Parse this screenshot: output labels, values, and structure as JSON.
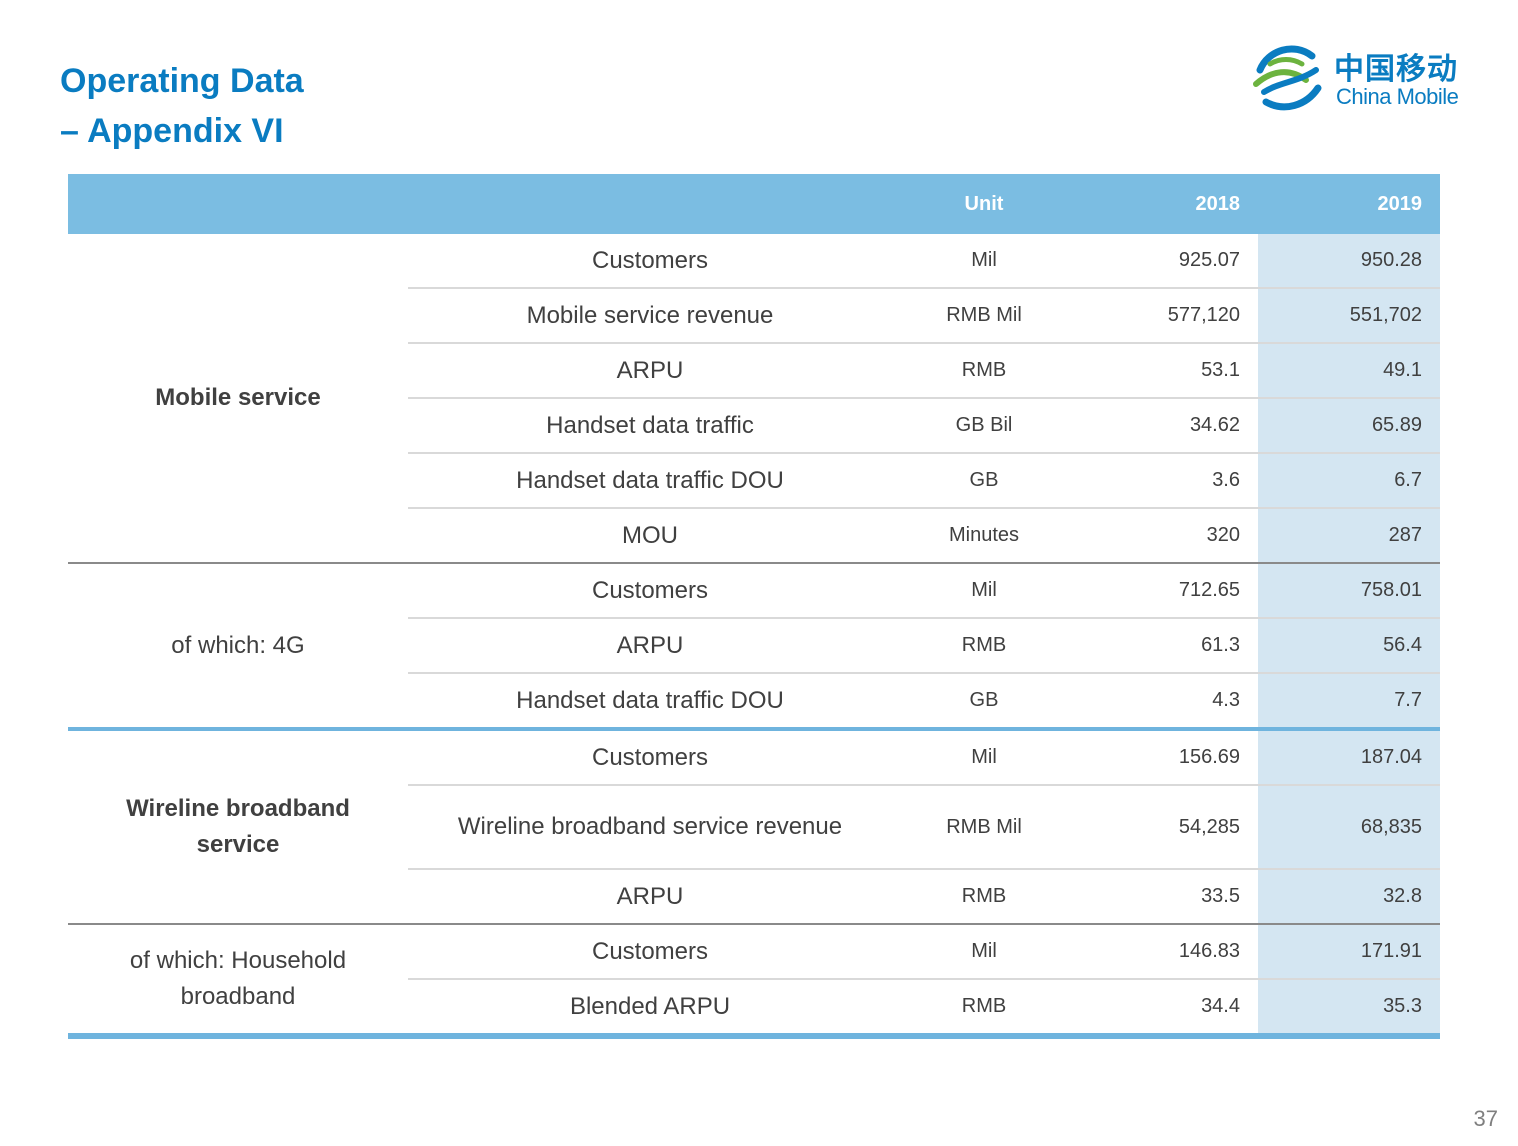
{
  "title": {
    "line1": "Operating Data",
    "line2": "– Appendix VI"
  },
  "logo": {
    "cn": "中国移动",
    "en": "China Mobile",
    "icon": "china-mobile-logo-icon",
    "color": "#0a7cc1"
  },
  "table": {
    "headers": {
      "group": "",
      "metric": "",
      "unit": "Unit",
      "y2018": "2018",
      "y2019": "2019"
    },
    "groups": [
      {
        "label": "Mobile service",
        "rows": [
          {
            "metric": "Customers",
            "unit": "Mil",
            "y2018": "925.07",
            "y2019": "950.28"
          },
          {
            "metric": "Mobile service revenue",
            "unit": "RMB Mil",
            "y2018": "577,120",
            "y2019": "551,702"
          },
          {
            "metric": "ARPU",
            "unit": "RMB",
            "y2018": "53.1",
            "y2019": "49.1"
          },
          {
            "metric": "Handset data traffic",
            "unit": "GB Bil",
            "y2018": "34.62",
            "y2019": "65.89"
          },
          {
            "metric": "Handset data traffic DOU",
            "unit": "GB",
            "y2018": "3.6",
            "y2019": "6.7"
          },
          {
            "metric": "MOU",
            "unit": "Minutes",
            "y2018": "320",
            "y2019": "287"
          }
        ]
      },
      {
        "label": "of which: 4G",
        "rows": [
          {
            "metric": "Customers",
            "unit": "Mil",
            "y2018": "712.65",
            "y2019": "758.01"
          },
          {
            "metric": "ARPU",
            "unit": "RMB",
            "y2018": "61.3",
            "y2019": "56.4"
          },
          {
            "metric": "Handset data traffic DOU",
            "unit": "GB",
            "y2018": "4.3",
            "y2019": "7.7"
          }
        ]
      },
      {
        "label": "Wireline broadband service",
        "rows": [
          {
            "metric": "Customers",
            "unit": "Mil",
            "y2018": "156.69",
            "y2019": "187.04"
          },
          {
            "metric": "Wireline broadband service revenue",
            "unit": "RMB Mil",
            "y2018": "54,285",
            "y2019": "68,835"
          },
          {
            "metric": "ARPU",
            "unit": "RMB",
            "y2018": "33.5",
            "y2019": "32.8"
          }
        ]
      },
      {
        "label": "of which: Household broadband",
        "rows": [
          {
            "metric": "Customers",
            "unit": "Mil",
            "y2018": "146.83",
            "y2019": "171.91"
          },
          {
            "metric": "Blended ARPU",
            "unit": "RMB",
            "y2018": "34.4",
            "y2019": "35.3"
          }
        ]
      }
    ]
  },
  "colors": {
    "header_bg": "#7bbde2",
    "highlight_col": "#d4e6f2",
    "accent": "#0a7cc1"
  },
  "page_number": "37"
}
